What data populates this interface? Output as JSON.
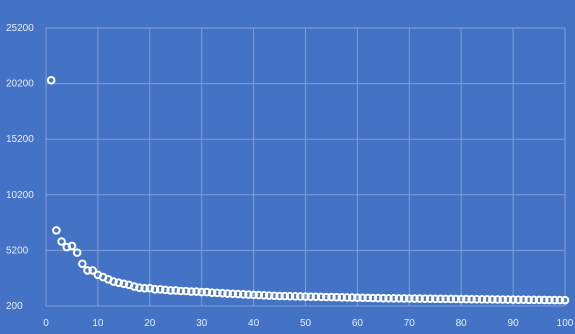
{
  "chart_data": {
    "type": "scatter",
    "title": "",
    "xlabel": "",
    "ylabel": "",
    "xlim": [
      0,
      100
    ],
    "ylim": [
      200,
      25200
    ],
    "x_ticks": [
      "0",
      "10",
      "20",
      "30",
      "40",
      "50",
      "60",
      "70",
      "80",
      "90",
      "100"
    ],
    "y_ticks": [
      "200",
      "5200",
      "10200",
      "15200",
      "20200",
      "25200"
    ],
    "grid": true,
    "background_color": "#4472c4",
    "marker": "open-circle",
    "marker_color": "#ffffff",
    "series": [
      {
        "x": [
          1,
          2,
          3,
          4,
          5,
          6,
          7,
          8,
          9,
          10,
          11,
          12,
          13,
          14,
          15,
          16,
          17,
          18,
          19,
          20,
          21,
          22,
          23,
          24,
          25,
          26,
          27,
          28,
          29,
          30,
          31,
          32,
          33,
          34,
          35,
          36,
          37,
          38,
          39,
          40,
          41,
          42,
          43,
          44,
          45,
          46,
          47,
          48,
          49,
          50,
          51,
          52,
          53,
          54,
          55,
          56,
          57,
          58,
          59,
          60,
          61,
          62,
          63,
          64,
          65,
          66,
          67,
          68,
          69,
          70,
          71,
          72,
          73,
          74,
          75,
          76,
          77,
          78,
          79,
          80,
          81,
          82,
          83,
          84,
          85,
          86,
          87,
          88,
          89,
          90,
          91,
          92,
          93,
          94,
          95,
          96,
          97,
          98,
          99,
          100
        ],
        "y": [
          20500,
          7000,
          6000,
          5500,
          5600,
          5000,
          4000,
          3400,
          3400,
          3000,
          2800,
          2600,
          2400,
          2300,
          2200,
          2100,
          1950,
          1850,
          1800,
          1800,
          1700,
          1700,
          1650,
          1600,
          1600,
          1550,
          1550,
          1500,
          1500,
          1450,
          1450,
          1400,
          1380,
          1350,
          1320,
          1300,
          1280,
          1250,
          1230,
          1200,
          1180,
          1160,
          1140,
          1120,
          1100,
          1090,
          1080,
          1070,
          1060,
          1050,
          1040,
          1030,
          1020,
          1010,
          1000,
          990,
          980,
          970,
          960,
          950,
          940,
          930,
          920,
          910,
          900,
          895,
          890,
          885,
          880,
          875,
          870,
          865,
          860,
          855,
          850,
          845,
          840,
          835,
          830,
          825,
          820,
          815,
          810,
          805,
          800,
          795,
          790,
          785,
          780,
          775,
          770,
          765,
          760,
          755,
          750,
          745,
          740,
          735,
          730,
          725
        ]
      }
    ]
  }
}
